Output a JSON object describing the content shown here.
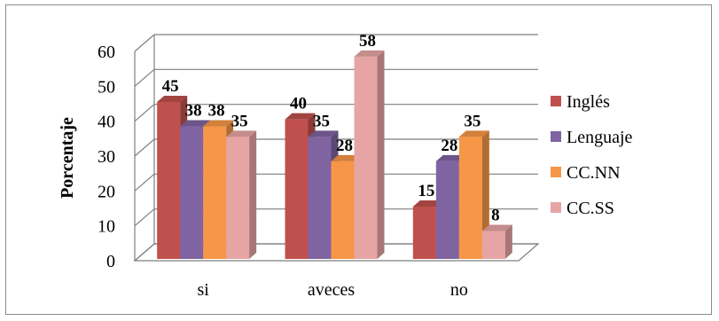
{
  "chart_data": {
    "type": "bar",
    "ylabel": "Porcentaje",
    "xlabel": "",
    "ylim": [
      0,
      60
    ],
    "yticks": [
      0,
      10,
      20,
      30,
      40,
      50,
      60
    ],
    "categories": [
      "si",
      "aveces",
      "no"
    ],
    "series": [
      {
        "name": "Inglés",
        "values": [
          45,
          40,
          15
        ],
        "color": "#c0504d"
      },
      {
        "name": "Lenguaje",
        "values": [
          38,
          35,
          28
        ],
        "color": "#8064a2"
      },
      {
        "name": "CC.NN",
        "values": [
          38,
          28,
          35
        ],
        "color": "#f79646"
      },
      {
        "name": "CC.SS",
        "values": [
          35,
          58,
          8
        ],
        "color": "#e6a5a4"
      }
    ],
    "grid": true,
    "style": "3d-clustered-column",
    "legend_position": "right"
  }
}
